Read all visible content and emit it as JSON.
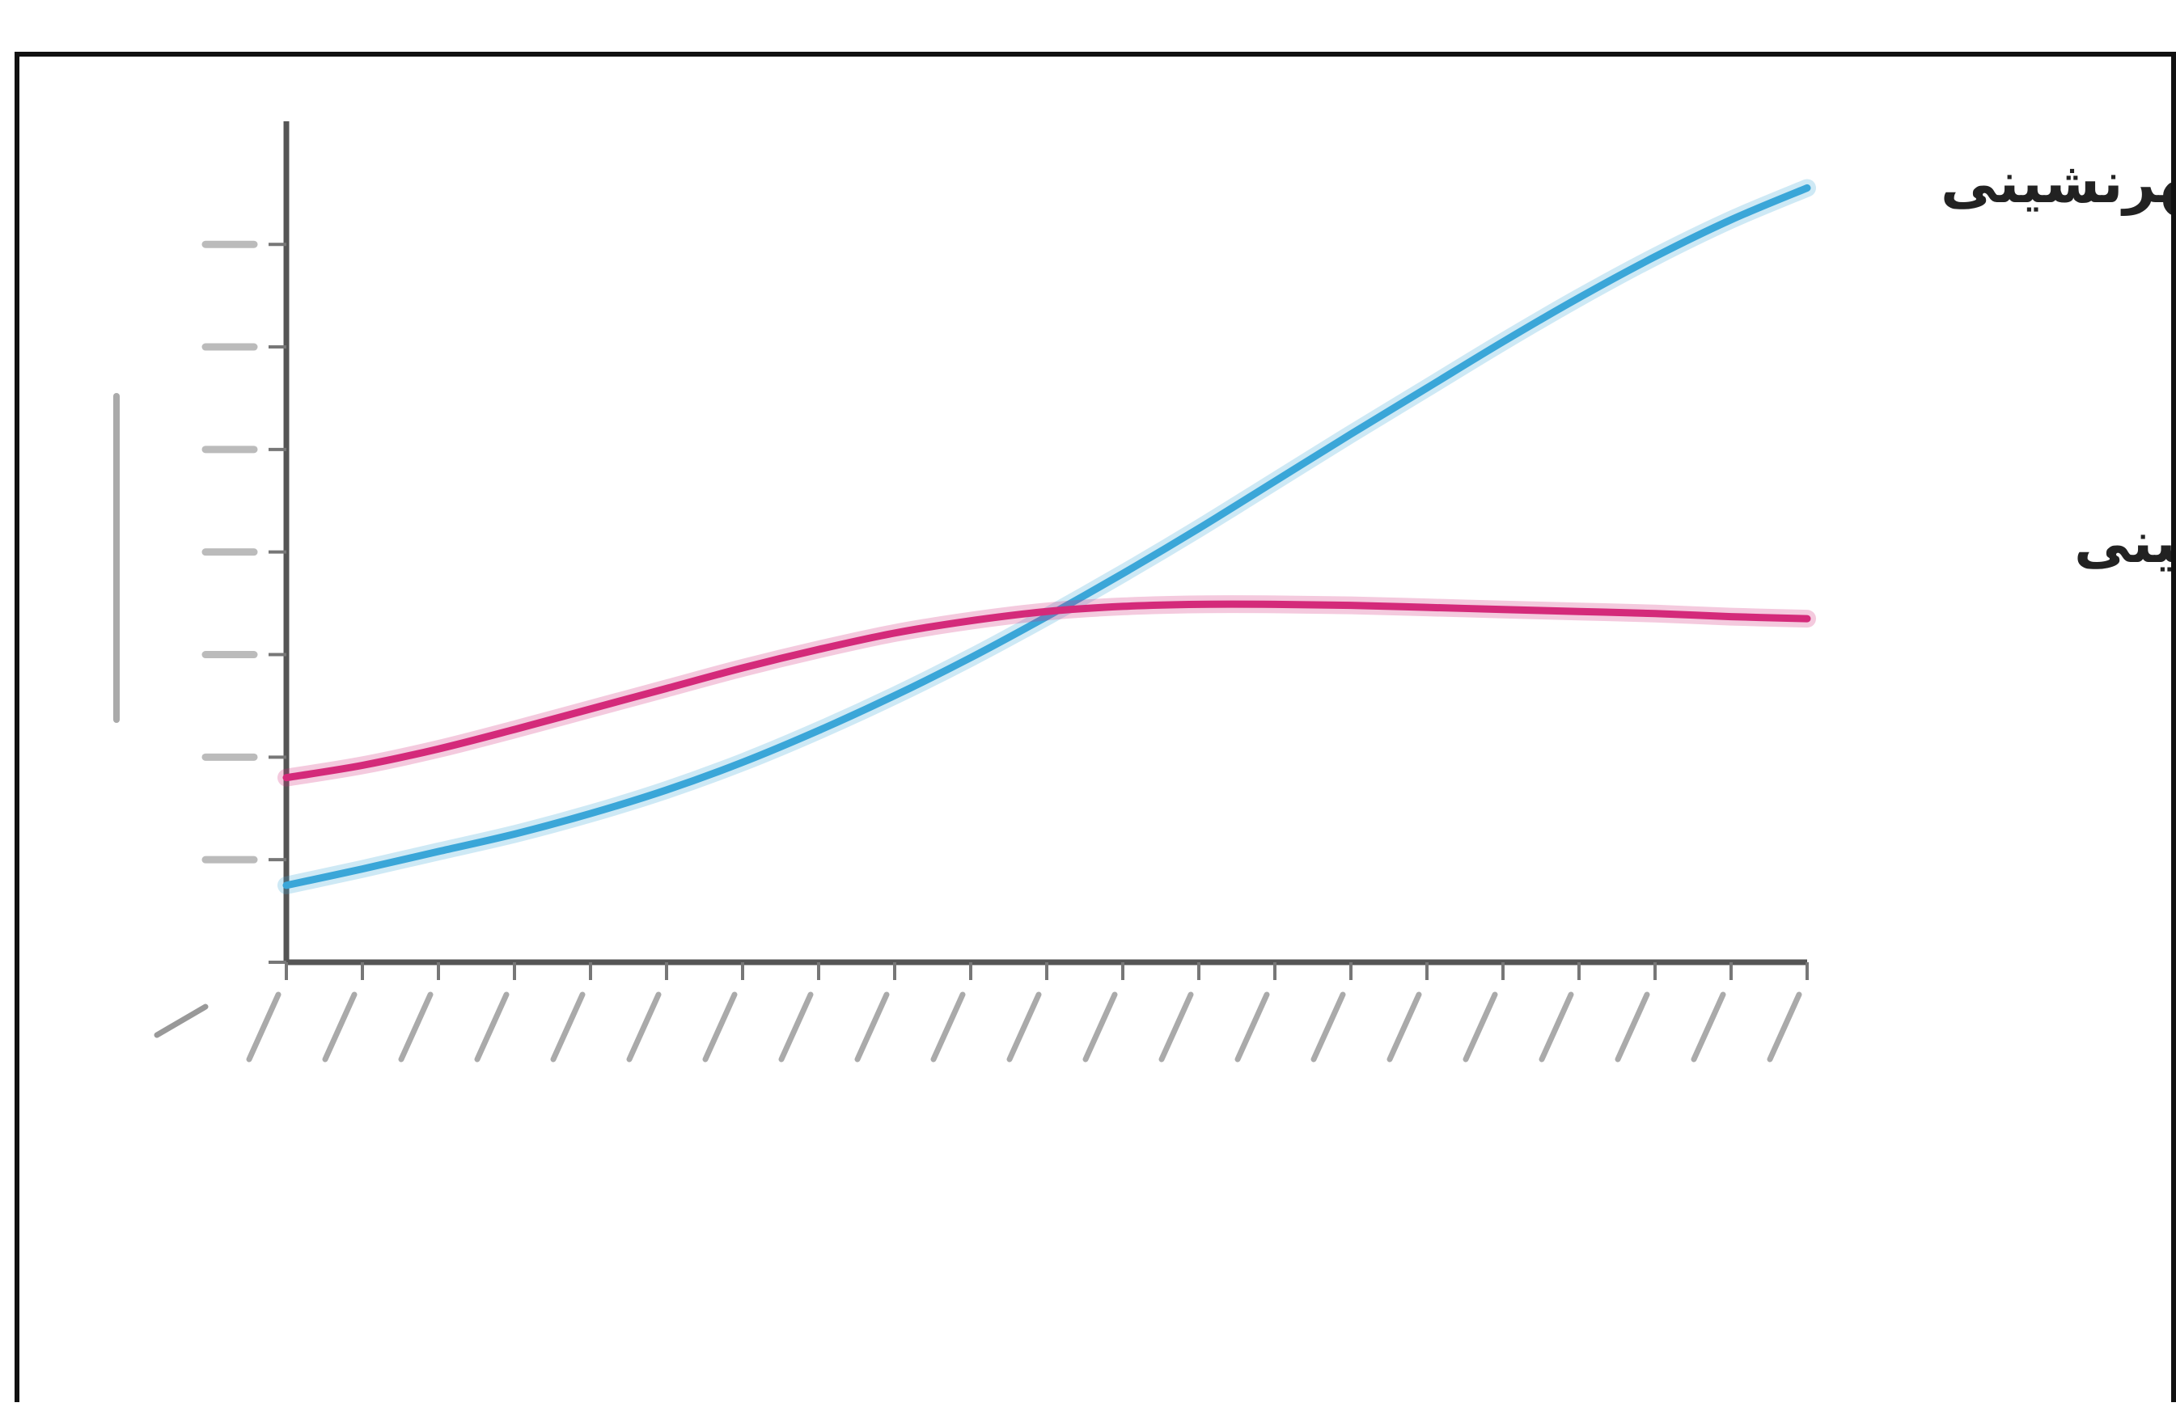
{
  "chart_data": {
    "type": "line",
    "x": [
      0,
      1,
      2,
      3,
      4,
      5,
      6,
      7,
      8,
      9,
      10,
      11,
      12,
      13,
      14,
      15,
      16,
      17,
      18,
      19,
      20
    ],
    "ylim": [
      0,
      7
    ],
    "y_ticks": [
      0,
      1,
      2,
      3,
      4,
      5,
      6,
      7
    ],
    "series": [
      {
        "name": "شهرنشینی",
        "color": "#3aa6d8",
        "values": [
          0.75,
          0.91,
          1.08,
          1.25,
          1.45,
          1.68,
          1.95,
          2.26,
          2.6,
          2.97,
          3.37,
          3.79,
          4.23,
          4.69,
          5.15,
          5.6,
          6.05,
          6.48,
          6.88,
          7.24,
          7.55
        ]
      },
      {
        "name": "روستانشینی",
        "color": "#d42a7a",
        "values": [
          1.8,
          1.92,
          2.08,
          2.27,
          2.47,
          2.67,
          2.87,
          3.05,
          3.21,
          3.33,
          3.42,
          3.47,
          3.49,
          3.49,
          3.48,
          3.46,
          3.44,
          3.42,
          3.4,
          3.37,
          3.35
        ]
      }
    ],
    "grid": false,
    "legend": "labels at line ends"
  }
}
